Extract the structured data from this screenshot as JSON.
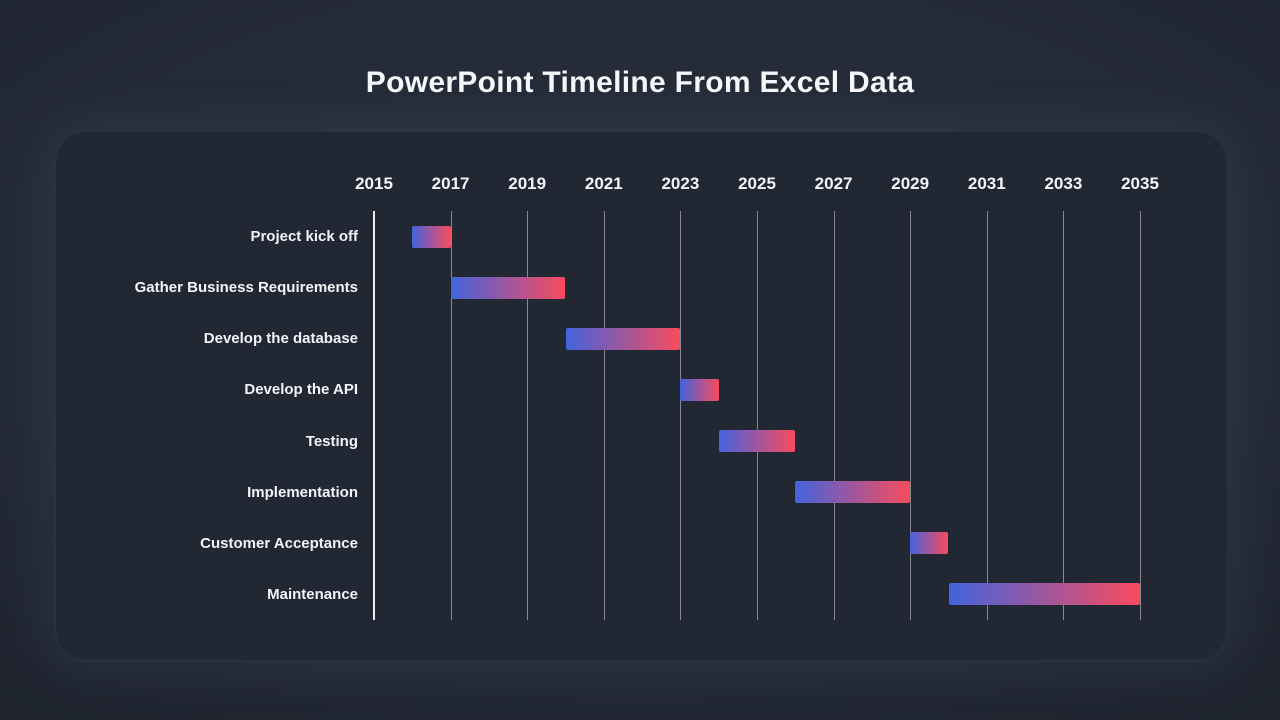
{
  "title": "PowerPoint Timeline From Excel Data",
  "chart_data": {
    "type": "gantt",
    "title": "PowerPoint Timeline From Excel Data",
    "xlabel": "",
    "ylabel": "",
    "x_axis": {
      "min": 2015,
      "max": 2035,
      "tick_step": 2,
      "ticks": [
        2015,
        2017,
        2019,
        2021,
        2023,
        2025,
        2027,
        2029,
        2031,
        2033,
        2035
      ]
    },
    "grid": "vertical-only",
    "legend": "none",
    "tasks": [
      {
        "label": "Project kick off",
        "start": 2016,
        "end": 2017
      },
      {
        "label": "Gather Business Requirements",
        "start": 2017,
        "end": 2020
      },
      {
        "label": "Develop the database",
        "start": 2020,
        "end": 2023
      },
      {
        "label": "Develop the API",
        "start": 2023,
        "end": 2024
      },
      {
        "label": "Testing",
        "start": 2024,
        "end": 2026
      },
      {
        "label": "Implementation",
        "start": 2026,
        "end": 2029
      },
      {
        "label": "Customer Acceptance",
        "start": 2029,
        "end": 2030
      },
      {
        "label": "Maintenance",
        "start": 2030,
        "end": 2035
      }
    ],
    "colors": {
      "bar_gradient_start": "#4363DD",
      "bar_gradient_end": "#F94B5E",
      "background": "#242A36",
      "panel": "#212834",
      "text": "#F2F4F7"
    }
  }
}
